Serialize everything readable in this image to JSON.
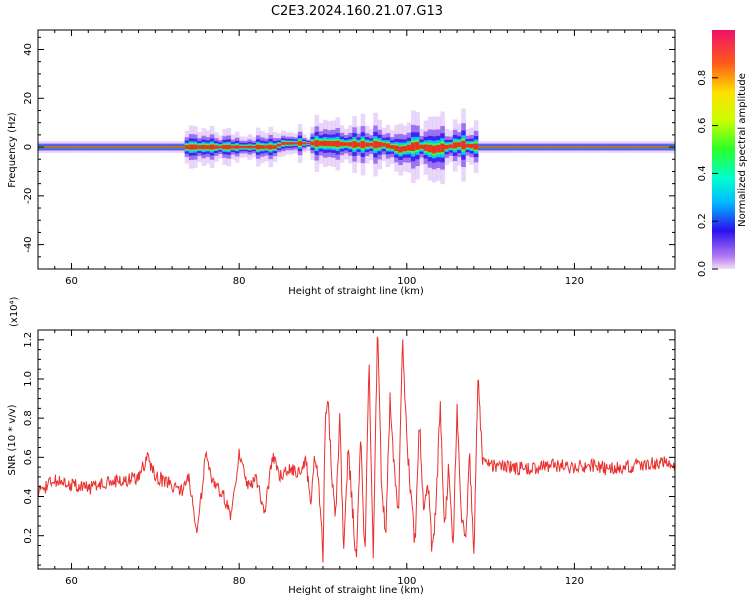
{
  "title": "C2E3.2024.160.21.07.G13",
  "chart_data": [
    {
      "type": "heatmap",
      "xlabel": "Height of straight line (km)",
      "ylabel": "Frequency (Hz)",
      "xlim": [
        56,
        132
      ],
      "ylim": [
        -50,
        48
      ],
      "xticks": [
        60,
        80,
        100,
        120
      ],
      "yticks": [
        40,
        20,
        0,
        -20,
        -40
      ],
      "colorbar": {
        "label": "Normalized spectral amplitude",
        "range": [
          0.0,
          1.0
        ],
        "ticks": [
          "0.0",
          "0.2",
          "0.4",
          "0.6",
          "0.8"
        ]
      },
      "ridge": [
        {
          "x": 56,
          "y": 0
        },
        {
          "x": 84,
          "y": 0
        },
        {
          "x": 85,
          "y": 1.5
        },
        {
          "x": 90,
          "y": 1.5
        },
        {
          "x": 94,
          "y": 1
        },
        {
          "x": 97,
          "y": 1
        },
        {
          "x": 99,
          "y": -1
        },
        {
          "x": 101,
          "y": 0.5
        },
        {
          "x": 103,
          "y": -1
        },
        {
          "x": 106,
          "y": 1
        },
        {
          "x": 108.5,
          "y": 0
        },
        {
          "x": 132,
          "y": 0
        }
      ]
    },
    {
      "type": "line",
      "xlabel": "Height of straight line (km)",
      "ylabel": "SNR (10 * v/v)",
      "y_multiplier": "(x10⁴)",
      "xlim": [
        56,
        132
      ],
      "ylim": [
        0.03,
        1.25
      ],
      "xticks": [
        60,
        80,
        100,
        120
      ],
      "yticks": [
        "0.2",
        "0.4",
        "0.6",
        "0.8",
        "1.0",
        "1.2"
      ],
      "color": "#e8322f",
      "series": [
        {
          "x": [
            56,
            58,
            60,
            62,
            64,
            66,
            68,
            69,
            70,
            72,
            73,
            74,
            75,
            76,
            77,
            78,
            79,
            80,
            81,
            82,
            83,
            84,
            85,
            86,
            87,
            88,
            88.5,
            89,
            89.5,
            90,
            90.3,
            90.6,
            91,
            91.5,
            92,
            92.5,
            93,
            93.5,
            94,
            94.5,
            95,
            95.5,
            96,
            96.5,
            97,
            97.5,
            98,
            98.5,
            99,
            99.5,
            100,
            100.5,
            101,
            101.5,
            102,
            102.5,
            103,
            103.5,
            104,
            104.5,
            105,
            105.5,
            106,
            106.5,
            107,
            107.5,
            108,
            108.5,
            109,
            110,
            112,
            114,
            116,
            118,
            120,
            122,
            124,
            126,
            128,
            130,
            132
          ],
          "y": [
            0.42,
            0.48,
            0.46,
            0.44,
            0.47,
            0.48,
            0.5,
            0.6,
            0.5,
            0.46,
            0.42,
            0.5,
            0.2,
            0.62,
            0.45,
            0.42,
            0.3,
            0.62,
            0.45,
            0.5,
            0.32,
            0.6,
            0.5,
            0.55,
            0.52,
            0.58,
            0.35,
            0.6,
            0.45,
            0.1,
            0.85,
            0.9,
            0.55,
            0.3,
            0.8,
            0.1,
            0.65,
            0.35,
            0.06,
            0.7,
            0.1,
            1.1,
            0.08,
            1.25,
            0.45,
            0.2,
            0.9,
            0.55,
            0.3,
            1.2,
            0.7,
            0.4,
            0.15,
            0.8,
            0.3,
            0.5,
            0.12,
            0.35,
            0.88,
            0.2,
            0.55,
            0.1,
            0.85,
            0.3,
            0.15,
            0.6,
            0.1,
            1.04,
            0.58,
            0.56,
            0.55,
            0.54,
            0.55,
            0.56,
            0.55,
            0.56,
            0.54,
            0.55,
            0.56,
            0.57,
            0.57
          ]
        }
      ]
    }
  ]
}
